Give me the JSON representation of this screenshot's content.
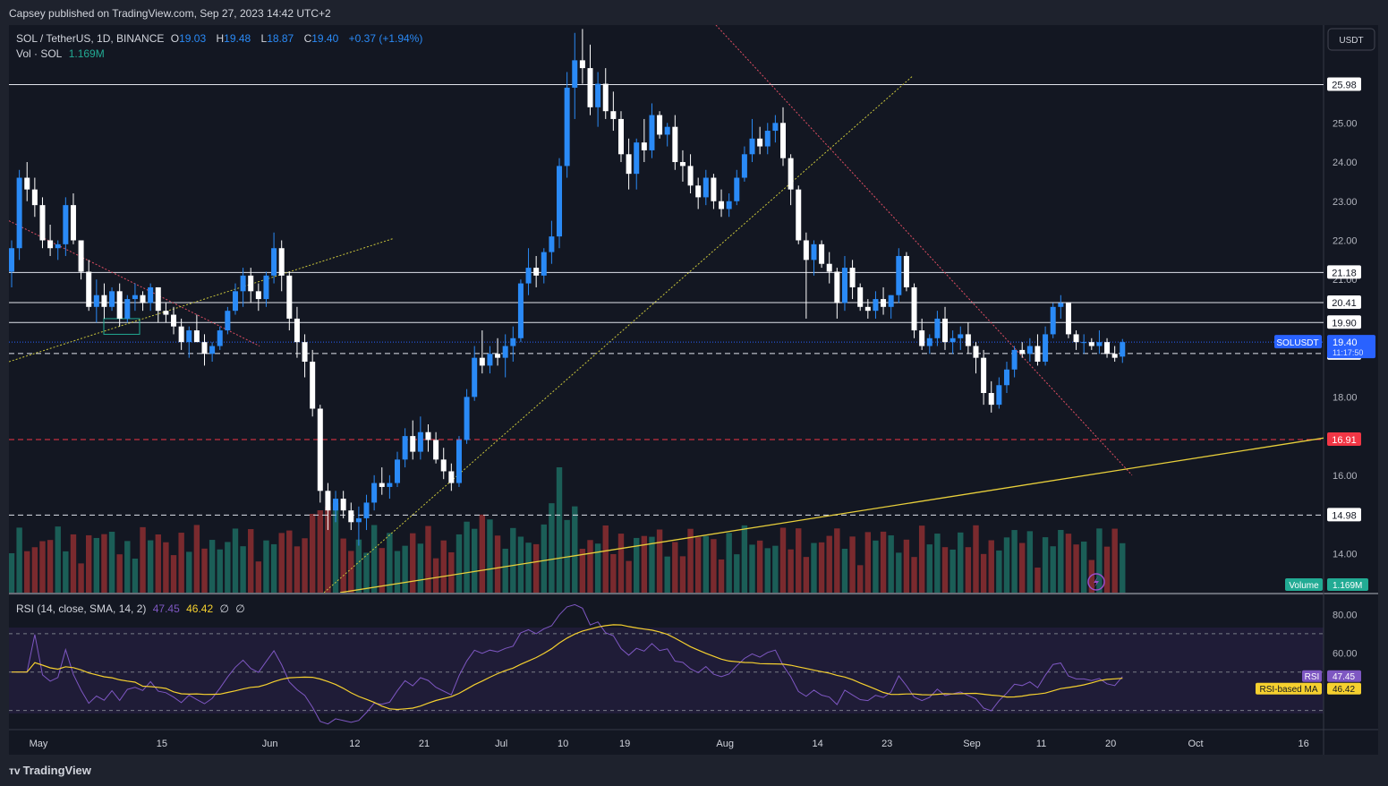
{
  "header": {
    "published": "Capsey published on TradingView.com, Sep 27, 2023 14:42 UTC+2"
  },
  "legend": {
    "symbol": "SOL / TetherUS, 1D, BINANCE",
    "o_label": "O",
    "o": "19.03",
    "h_label": "H",
    "h": "19.48",
    "l_label": "L",
    "l": "18.87",
    "c_label": "C",
    "c": "19.40",
    "change": "+0.37 (+1.94%)",
    "vol_label": "Vol · SOL",
    "vol": "1.169M"
  },
  "currency_button": "USDT",
  "rsi_legend": {
    "label": "RSI (14, close, SMA, 14, 2)",
    "rsi": "47.45",
    "ma": "46.42",
    "nan1": "∅",
    "nan2": "∅"
  },
  "watermark": "TradingView",
  "price_axis": [
    "25.00",
    "24.00",
    "23.00",
    "22.00",
    "21.00",
    "18.00",
    "16.00",
    "14.00"
  ],
  "rsi_axis": [
    "80.00",
    "60.00"
  ],
  "time_axis": [
    "May",
    "15",
    "Jun",
    "12",
    "21",
    "Jul",
    "10",
    "19",
    "Aug",
    "14",
    "23",
    "Sep",
    "11",
    "20",
    "Oct",
    "16"
  ],
  "level_labels": [
    "25.98",
    "21.18",
    "20.41",
    "19.90",
    "19.11",
    "16.91",
    "14.98"
  ],
  "current_price": {
    "symbol": "SOLUSDT",
    "price": "19.40",
    "countdown": "11:17:50"
  },
  "volume_tag": {
    "label": "Volume",
    "value": "1.169M"
  },
  "rsi_tags": {
    "rsi_label": "RSI",
    "rsi_value": "47.45",
    "ma_label": "RSI-based MA",
    "ma_value": "46.42"
  },
  "colors": {
    "bg": "#131722",
    "frame": "#1e222d",
    "up": "#2a8af6",
    "down": "#ffffff",
    "vol_up": "#1b5e57",
    "vol_down": "#7a2a2e",
    "rsi": "#7e57c2",
    "rsi_ma": "#f5d02f",
    "level_red": "#f23645",
    "trend_yellow": "#e8cf3b"
  },
  "chart_data": {
    "type": "candlestick",
    "symbol": "SOLUSDT",
    "interval": "1D",
    "ylim": [
      13.0,
      27.5
    ],
    "levels": [
      25.98,
      21.18,
      20.41,
      19.9,
      19.11,
      16.91,
      14.98
    ],
    "ohlc": [
      [
        21.2,
        22.0,
        20.8,
        21.8
      ],
      [
        21.8,
        23.8,
        21.5,
        23.6
      ],
      [
        23.6,
        24.0,
        23.0,
        23.3
      ],
      [
        23.3,
        23.6,
        22.6,
        22.9
      ],
      [
        22.9,
        23.1,
        21.8,
        22.0
      ],
      [
        22.0,
        22.4,
        21.6,
        21.8
      ],
      [
        21.8,
        22.0,
        21.5,
        21.9
      ],
      [
        21.9,
        23.1,
        21.6,
        22.9
      ],
      [
        22.9,
        23.2,
        21.9,
        22.0
      ],
      [
        22.0,
        22.0,
        21.0,
        21.2
      ],
      [
        21.2,
        21.5,
        20.2,
        20.3
      ],
      [
        20.3,
        21.0,
        19.9,
        20.6
      ],
      [
        20.6,
        20.9,
        20.0,
        20.3
      ],
      [
        20.3,
        20.8,
        20.2,
        20.7
      ],
      [
        20.7,
        20.9,
        19.8,
        20.0
      ],
      [
        20.0,
        20.6,
        19.9,
        20.5
      ],
      [
        20.5,
        20.9,
        20.2,
        20.6
      ],
      [
        20.6,
        20.7,
        20.2,
        20.4
      ],
      [
        20.4,
        20.9,
        20.2,
        20.8
      ],
      [
        20.8,
        20.8,
        19.9,
        20.2
      ],
      [
        20.2,
        20.4,
        19.9,
        20.1
      ],
      [
        20.1,
        20.3,
        19.6,
        19.8
      ],
      [
        19.8,
        20.0,
        19.2,
        19.4
      ],
      [
        19.4,
        19.8,
        19.0,
        19.7
      ],
      [
        19.7,
        20.1,
        19.5,
        19.4
      ],
      [
        19.4,
        19.6,
        18.8,
        19.1
      ],
      [
        19.1,
        19.4,
        18.9,
        19.3
      ],
      [
        19.3,
        19.8,
        19.2,
        19.7
      ],
      [
        19.7,
        20.3,
        19.6,
        20.2
      ],
      [
        20.2,
        20.9,
        20.1,
        20.7
      ],
      [
        20.7,
        21.3,
        20.3,
        21.1
      ],
      [
        21.1,
        21.3,
        20.4,
        20.7
      ],
      [
        20.7,
        20.9,
        20.2,
        20.5
      ],
      [
        20.5,
        21.2,
        20.3,
        21.1
      ],
      [
        21.1,
        22.2,
        20.9,
        21.8
      ],
      [
        21.8,
        22.0,
        20.7,
        21.1
      ],
      [
        21.1,
        21.2,
        19.7,
        20.0
      ],
      [
        20.0,
        20.3,
        19.0,
        19.4
      ],
      [
        19.4,
        19.6,
        18.5,
        18.9
      ],
      [
        18.9,
        19.2,
        17.5,
        17.7
      ],
      [
        17.7,
        17.8,
        15.3,
        15.6
      ],
      [
        15.6,
        15.8,
        14.6,
        15.1
      ],
      [
        15.1,
        15.6,
        14.8,
        15.4
      ],
      [
        15.4,
        15.6,
        14.9,
        15.1
      ],
      [
        15.1,
        15.3,
        14.6,
        14.8
      ],
      [
        14.8,
        15.2,
        14.2,
        14.9
      ],
      [
        14.9,
        15.5,
        14.6,
        15.3
      ],
      [
        15.3,
        16.0,
        15.1,
        15.8
      ],
      [
        15.8,
        16.2,
        15.5,
        15.7
      ],
      [
        15.7,
        16.0,
        15.4,
        15.8
      ],
      [
        15.8,
        16.6,
        15.7,
        16.4
      ],
      [
        16.4,
        17.2,
        16.2,
        17.0
      ],
      [
        17.0,
        17.4,
        16.4,
        16.6
      ],
      [
        16.6,
        17.5,
        16.4,
        17.1
      ],
      [
        17.1,
        17.3,
        16.6,
        16.9
      ],
      [
        16.9,
        17.1,
        16.3,
        16.4
      ],
      [
        16.4,
        16.7,
        15.9,
        16.1
      ],
      [
        16.1,
        16.3,
        15.6,
        15.8
      ],
      [
        15.8,
        17.0,
        15.7,
        16.9
      ],
      [
        16.9,
        18.2,
        16.8,
        18.0
      ],
      [
        18.0,
        19.3,
        17.9,
        19.0
      ],
      [
        19.0,
        19.7,
        18.6,
        18.8
      ],
      [
        18.8,
        19.3,
        18.6,
        19.1
      ],
      [
        19.1,
        19.5,
        18.8,
        19.0
      ],
      [
        19.0,
        19.6,
        18.5,
        19.3
      ],
      [
        19.3,
        19.8,
        18.9,
        19.5
      ],
      [
        19.5,
        21.0,
        19.4,
        20.9
      ],
      [
        20.9,
        21.8,
        20.6,
        21.3
      ],
      [
        21.3,
        21.6,
        20.8,
        21.1
      ],
      [
        21.1,
        21.8,
        20.9,
        21.7
      ],
      [
        21.7,
        22.5,
        21.4,
        22.1
      ],
      [
        22.1,
        24.1,
        21.8,
        23.9
      ],
      [
        23.9,
        26.3,
        23.6,
        25.9
      ],
      [
        25.9,
        27.3,
        25.1,
        26.6
      ],
      [
        26.6,
        27.4,
        26.0,
        26.4
      ],
      [
        26.4,
        27.0,
        25.2,
        25.4
      ],
      [
        25.4,
        26.3,
        24.9,
        26.0
      ],
      [
        26.0,
        26.4,
        25.1,
        25.3
      ],
      [
        25.3,
        25.8,
        24.8,
        25.1
      ],
      [
        25.1,
        25.3,
        24.0,
        24.2
      ],
      [
        24.2,
        24.6,
        23.3,
        23.7
      ],
      [
        23.7,
        24.6,
        23.3,
        24.5
      ],
      [
        24.5,
        25.1,
        24.0,
        24.3
      ],
      [
        24.3,
        25.5,
        24.1,
        25.2
      ],
      [
        25.2,
        25.3,
        24.6,
        24.7
      ],
      [
        24.7,
        25.0,
        24.4,
        24.9
      ],
      [
        24.9,
        25.2,
        23.8,
        24.0
      ],
      [
        24.0,
        24.3,
        23.5,
        23.9
      ],
      [
        23.9,
        24.2,
        23.2,
        23.4
      ],
      [
        23.4,
        23.6,
        22.8,
        23.1
      ],
      [
        23.1,
        23.8,
        22.9,
        23.6
      ],
      [
        23.6,
        23.7,
        22.8,
        23.0
      ],
      [
        23.0,
        23.3,
        22.6,
        22.8
      ],
      [
        22.8,
        23.2,
        22.6,
        23.0
      ],
      [
        23.0,
        23.8,
        22.9,
        23.6
      ],
      [
        23.6,
        24.4,
        23.5,
        24.2
      ],
      [
        24.2,
        25.1,
        24.0,
        24.6
      ],
      [
        24.6,
        24.9,
        24.2,
        24.4
      ],
      [
        24.4,
        25.0,
        24.2,
        24.8
      ],
      [
        24.8,
        25.2,
        24.5,
        25.0
      ],
      [
        25.0,
        25.4,
        23.9,
        24.1
      ],
      [
        24.1,
        24.2,
        22.9,
        23.3
      ],
      [
        23.3,
        23.4,
        21.9,
        22.0
      ],
      [
        22.0,
        22.2,
        20.0,
        21.5
      ],
      [
        21.5,
        22.0,
        21.1,
        21.9
      ],
      [
        21.9,
        22.0,
        21.3,
        21.4
      ],
      [
        21.4,
        21.7,
        20.9,
        21.2
      ],
      [
        21.2,
        21.3,
        20.0,
        20.4
      ],
      [
        20.4,
        21.6,
        20.2,
        21.3
      ],
      [
        21.3,
        21.5,
        20.5,
        20.8
      ],
      [
        20.8,
        20.9,
        20.2,
        20.3
      ],
      [
        20.3,
        20.5,
        20.0,
        20.2
      ],
      [
        20.2,
        20.7,
        20.0,
        20.5
      ],
      [
        20.5,
        20.8,
        20.1,
        20.3
      ],
      [
        20.3,
        20.6,
        20.0,
        20.6
      ],
      [
        20.6,
        21.8,
        20.4,
        21.6
      ],
      [
        21.6,
        21.7,
        20.7,
        20.8
      ],
      [
        20.8,
        20.9,
        19.5,
        19.7
      ],
      [
        19.7,
        20.0,
        19.2,
        19.3
      ],
      [
        19.3,
        19.6,
        19.1,
        19.5
      ],
      [
        19.5,
        20.2,
        19.3,
        20.0
      ],
      [
        20.0,
        20.3,
        19.2,
        19.4
      ],
      [
        19.4,
        19.7,
        19.1,
        19.5
      ],
      [
        19.5,
        19.8,
        19.2,
        19.6
      ],
      [
        19.6,
        19.9,
        19.1,
        19.3
      ],
      [
        19.3,
        19.4,
        18.6,
        19.0
      ],
      [
        19.0,
        19.2,
        17.8,
        18.1
      ],
      [
        18.1,
        18.4,
        17.6,
        17.8
      ],
      [
        17.8,
        18.5,
        17.7,
        18.3
      ],
      [
        18.3,
        18.9,
        18.1,
        18.7
      ],
      [
        18.7,
        19.3,
        18.5,
        19.2
      ],
      [
        19.2,
        19.4,
        19.0,
        19.1
      ],
      [
        19.1,
        19.5,
        18.9,
        19.3
      ],
      [
        19.3,
        19.6,
        18.8,
        18.9
      ],
      [
        18.9,
        19.8,
        18.8,
        19.6
      ],
      [
        19.6,
        20.4,
        19.5,
        20.3
      ],
      [
        20.3,
        20.6,
        20.0,
        20.4
      ],
      [
        20.4,
        20.4,
        19.5,
        19.6
      ],
      [
        19.6,
        19.7,
        19.2,
        19.4
      ],
      [
        19.4,
        19.6,
        19.1,
        19.4
      ],
      [
        19.4,
        19.5,
        19.2,
        19.3
      ],
      [
        19.3,
        19.7,
        19.1,
        19.4
      ],
      [
        19.4,
        19.5,
        19.0,
        19.1
      ],
      [
        19.1,
        19.3,
        18.9,
        19.0
      ],
      [
        19.03,
        19.48,
        18.87,
        19.4
      ]
    ],
    "rsi_ylim": [
      20,
      90
    ],
    "rsi_levels": [
      70,
      50,
      30
    ],
    "volume_ylim": [
      0,
      4.0
    ]
  }
}
